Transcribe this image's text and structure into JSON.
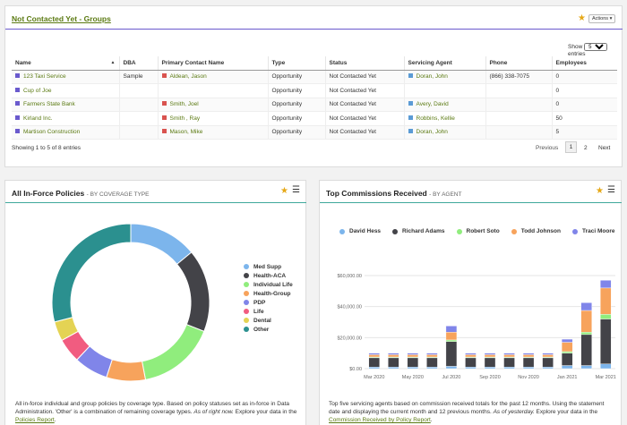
{
  "groups": {
    "title": "Not Contacted Yet - Groups",
    "actions_label": "Actions",
    "show_label": "Show",
    "show_value": "5",
    "entries_label": "entries",
    "columns": [
      "Name",
      "DBA",
      "Primary Contact Name",
      "Type",
      "Status",
      "Servicing Agent",
      "Phone",
      "Employees"
    ],
    "rows": [
      {
        "name": "123 Taxi Service",
        "dba": "Sample",
        "contact": "Aldean, Jason",
        "type": "Opportunity",
        "status": "Not Contacted Yet",
        "agent": "Doran, John",
        "phone": "(866) 338-7075",
        "employees": "0"
      },
      {
        "name": "Cup of Joe",
        "dba": "",
        "contact": "",
        "type": "Opportunity",
        "status": "Not Contacted Yet",
        "agent": "",
        "phone": "",
        "employees": "0"
      },
      {
        "name": "Farmers State Bank",
        "dba": "",
        "contact": "Smith, Joel",
        "type": "Opportunity",
        "status": "Not Contacted Yet",
        "agent": "Avery, David",
        "phone": "",
        "employees": "0"
      },
      {
        "name": "Kirland Inc.",
        "dba": "",
        "contact": "Smith , Ray",
        "type": "Opportunity",
        "status": "Not Contacted Yet",
        "agent": "Robbins, Kellie",
        "phone": "",
        "employees": "50"
      },
      {
        "name": "Martison Construction",
        "dba": "",
        "contact": "Mason, Mike",
        "type": "Opportunity",
        "status": "Not Contacted Yet",
        "agent": "Doran, John",
        "phone": "",
        "employees": "5"
      }
    ],
    "showing_text": "Showing 1 to 5 of 8 entries",
    "pager": {
      "previous": "Previous",
      "page1": "1",
      "page2": "2",
      "next": "Next"
    },
    "colors": {
      "name": "#6a5acd",
      "contact": "#d9534f",
      "agent": "#5b9bd5",
      "link": "#5b7a12"
    }
  },
  "policies": {
    "title": "All In-Force Policies",
    "subtitle": "- BY COVERAGE TYPE",
    "desc_1": "All in-force individual and group policies by coverage type. Based on policy statuses set as in-force in Data Administration. 'Other' is a combination of remaining coverage types. ",
    "desc_2": "As of right now.",
    "desc_3": " Explore your data in the ",
    "desc_link": "Policies Report",
    "desc_4": "."
  },
  "commissions": {
    "title": "Top Commissions Received",
    "subtitle": "- BY AGENT",
    "desc_1": "Top five servicing agents based on commission received totals for the past 12 months. Using the statement date and displaying the current month and 12 previous months. ",
    "desc_2": "As of yesterday.",
    "desc_3": " Explore your data in the ",
    "desc_link": "Commission Received by Policy Report",
    "desc_4": "."
  },
  "chart_data": [
    {
      "type": "pie",
      "title": "All In-Force Policies - BY COVERAGE TYPE",
      "labels": [
        "Med Supp",
        "Health-ACA",
        "Individual Life",
        "Health-Group",
        "PDP",
        "Life",
        "Dental",
        "Other"
      ],
      "values": [
        14,
        17,
        16,
        8,
        7,
        5,
        4,
        29
      ],
      "colors": [
        "#7cb5ec",
        "#434348",
        "#90ed7d",
        "#f7a35c",
        "#8085e9",
        "#f15c80",
        "#e4d354",
        "#2b908f"
      ],
      "legend_position": "right"
    },
    {
      "type": "bar",
      "stacked": true,
      "title": "Top Commissions Received - BY AGENT",
      "categories": [
        "Mar 2020",
        "Apr 2020",
        "May 2020",
        "Jun 2020",
        "Jul 2020",
        "Aug 2020",
        "Sep 2020",
        "Oct 2020",
        "Nov 2020",
        "Dec 2020",
        "Jan 2021",
        "Feb 2021",
        "Mar 2021"
      ],
      "x_tick_labels": [
        "Mar 2020",
        "",
        "May 2020",
        "",
        "Jul 2020",
        "",
        "Sep 2020",
        "",
        "Nov 2020",
        "",
        "Jan 2021",
        "",
        "Mar 2021"
      ],
      "y_tick_labels": [
        "$0.00",
        "$20,000.00",
        "$40,000.00",
        "$60,000.00"
      ],
      "ylim": [
        0,
        60000
      ],
      "series": [
        {
          "name": "David Hess",
          "color": "#7cb5ec",
          "values": [
            1000,
            1000,
            1000,
            1000,
            1500,
            1000,
            1000,
            1000,
            1000,
            1000,
            2000,
            2000,
            3000
          ]
        },
        {
          "name": "Richard Adams",
          "color": "#434348",
          "values": [
            6000,
            6000,
            6000,
            6000,
            16000,
            6000,
            6000,
            6000,
            6000,
            6000,
            8000,
            20000,
            29000
          ]
        },
        {
          "name": "Robert Soto",
          "color": "#90ed7d",
          "values": [
            500,
            500,
            500,
            500,
            1000,
            500,
            500,
            500,
            500,
            500,
            1000,
            1500,
            3000
          ]
        },
        {
          "name": "Todd Johnson",
          "color": "#f7a35c",
          "values": [
            1500,
            1500,
            1500,
            1500,
            5000,
            1500,
            1500,
            1500,
            1500,
            1500,
            6000,
            14000,
            17000
          ]
        },
        {
          "name": "Traci Moore",
          "color": "#8085e9",
          "values": [
            1000,
            1000,
            1000,
            1000,
            4000,
            1000,
            1000,
            1000,
            1000,
            1000,
            2000,
            5000,
            5000
          ]
        }
      ],
      "legend_position": "top"
    }
  ]
}
